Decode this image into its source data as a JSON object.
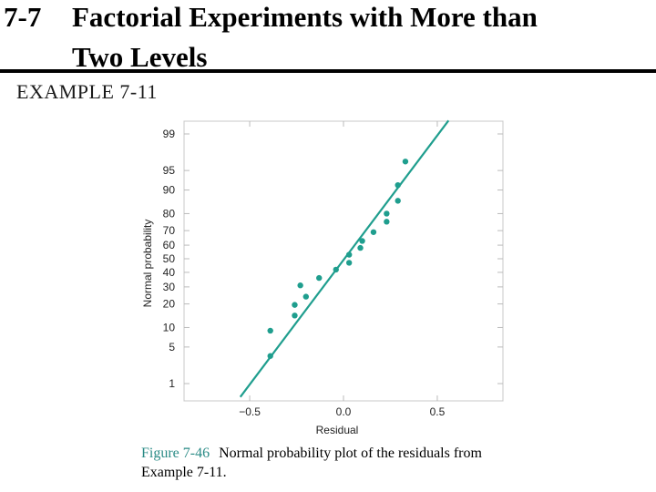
{
  "slide": {
    "number": "7-7",
    "title_line1": "Factorial Experiments with More than",
    "title_line2": "Two Levels",
    "example": "EXAMPLE 7-11"
  },
  "caption": {
    "label": "Figure 7-46",
    "text": "Normal probability plot of the residuals from Example 7-11."
  },
  "chart_data": {
    "type": "scatter",
    "xlabel": "Residual",
    "ylabel": "Normal probability",
    "xlim": [
      -0.85,
      0.85
    ],
    "y_scale": "normal-probability",
    "y_ticks": [
      1,
      5,
      10,
      20,
      30,
      40,
      50,
      60,
      70,
      80,
      90,
      95,
      99
    ],
    "x_ticks": [
      -0.5,
      0.0,
      0.5
    ],
    "x_tick_labels": [
      "−0.5",
      "0.0",
      "0.5"
    ],
    "point_color": "#1f9e8e",
    "line_color": "#1f9e8e",
    "points": [
      {
        "x": -0.39,
        "y": 3.5
      },
      {
        "x": -0.39,
        "y": 9.0
      },
      {
        "x": -0.26,
        "y": 14.5
      },
      {
        "x": -0.26,
        "y": 19.5
      },
      {
        "x": -0.23,
        "y": 31.0
      },
      {
        "x": -0.2,
        "y": 24.0
      },
      {
        "x": -0.13,
        "y": 36.0
      },
      {
        "x": -0.04,
        "y": 42.0
      },
      {
        "x": 0.03,
        "y": 47.0
      },
      {
        "x": 0.03,
        "y": 53.0
      },
      {
        "x": 0.09,
        "y": 58.0
      },
      {
        "x": 0.1,
        "y": 63.0
      },
      {
        "x": 0.16,
        "y": 69.0
      },
      {
        "x": 0.23,
        "y": 75.5
      },
      {
        "x": 0.23,
        "y": 80.0
      },
      {
        "x": 0.29,
        "y": 86.0
      },
      {
        "x": 0.29,
        "y": 91.5
      },
      {
        "x": 0.33,
        "y": 96.5
      }
    ],
    "fit_line": [
      {
        "x": -0.55,
        "y": 0.5
      },
      {
        "x": 0.56,
        "y": 99.5
      }
    ]
  }
}
